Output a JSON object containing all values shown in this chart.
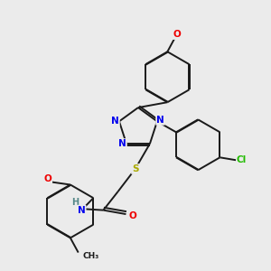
{
  "background_color": "#ebebeb",
  "bond_color": "#1a1a1a",
  "bond_width": 1.4,
  "dbo": 0.018,
  "atom_colors": {
    "N": "#0000ee",
    "O": "#ee0000",
    "S": "#aaaa00",
    "Cl": "#22bb00",
    "H": "#558888"
  },
  "fs": 7.5
}
